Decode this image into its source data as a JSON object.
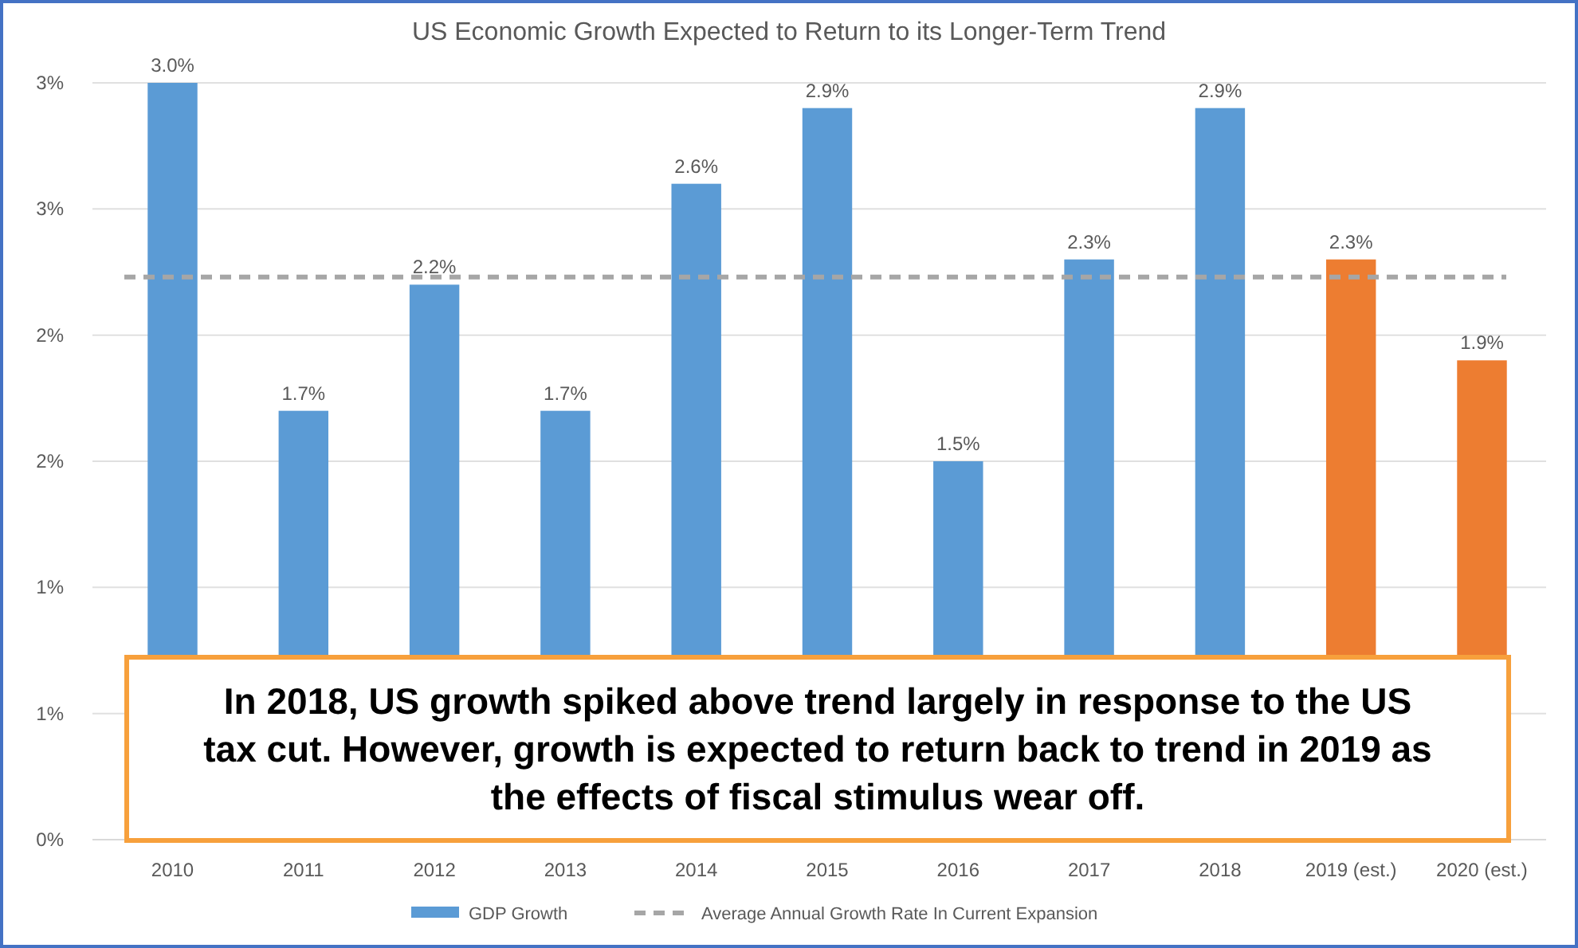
{
  "chart_data": {
    "type": "bar",
    "title": "US Economic Growth Expected to Return to its Longer-Term Trend",
    "categories": [
      "2010",
      "2011",
      "2012",
      "2013",
      "2014",
      "2015",
      "2016",
      "2017",
      "2018",
      "2019 (est.)",
      "2020 (est.)"
    ],
    "series": [
      {
        "name": "GDP Growth",
        "color": "#5b9bd5",
        "colors": [
          "#5b9bd5",
          "#5b9bd5",
          "#5b9bd5",
          "#5b9bd5",
          "#5b9bd5",
          "#5b9bd5",
          "#5b9bd5",
          "#5b9bd5",
          "#5b9bd5",
          "#ed7d31",
          "#ed7d31"
        ],
        "values": [
          3.0,
          1.7,
          2.2,
          1.7,
          2.6,
          2.9,
          1.5,
          2.3,
          2.9,
          2.3,
          1.9
        ],
        "value_labels": [
          "3.0%",
          "1.7%",
          "2.2%",
          "1.7%",
          "2.6%",
          "2.9%",
          "1.5%",
          "2.3%",
          "2.9%",
          "2.3%",
          "1.9%"
        ]
      }
    ],
    "ylim": [
      0,
      3
    ],
    "yticks": [
      {
        "value": 0,
        "label": "0%"
      },
      {
        "value": 0.5,
        "label": "1%"
      },
      {
        "value": 1,
        "label": "1%"
      },
      {
        "value": 1.5,
        "label": "2%"
      },
      {
        "value": 2,
        "label": "2%"
      },
      {
        "value": 2.5,
        "label": "3%"
      },
      {
        "value": 3,
        "label": "3%"
      }
    ],
    "grid": "y",
    "legend": "bottom",
    "ref_lines": [
      {
        "axis": "y",
        "value": 2.23,
        "label": "Average Annual Growth Rate In Current Expansion",
        "color": "#a6a6a6",
        "line_style": "dashed"
      }
    ],
    "annotations": [
      "In 2018, US growth spiked above trend largely in response to the US tax cut. However, growth is expected to return back to trend in 2019 as the effects of fiscal stimulus wear off."
    ]
  }
}
